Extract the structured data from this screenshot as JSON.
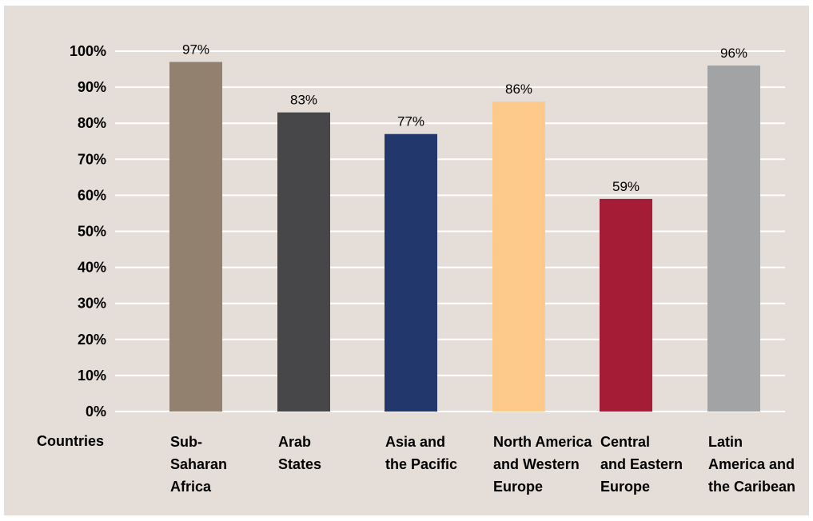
{
  "chart_data": {
    "type": "bar",
    "xlabel": "Countries",
    "ylabel": "",
    "ylim": [
      0,
      100
    ],
    "yticks": [
      "0%",
      "10%",
      "20%",
      "30%",
      "40%",
      "50%",
      "60%",
      "70%",
      "80%",
      "90%",
      "100%"
    ],
    "grid": true,
    "categories": [
      [
        "Sub-",
        "Saharan",
        "Africa"
      ],
      [
        "Arab",
        "States"
      ],
      [
        "Asia and",
        "the Pacific"
      ],
      [
        "North America",
        "and Western",
        "Europe"
      ],
      [
        "Central",
        "and Eastern",
        "Europe"
      ],
      [
        "Latin",
        "America and",
        "the Caribean"
      ]
    ],
    "values": [
      97,
      83,
      77,
      86,
      59,
      96
    ],
    "value_labels": [
      "97%",
      "83%",
      "77%",
      "86%",
      "59%",
      "96%"
    ],
    "bar_colors": [
      "#938170",
      "#474749",
      "#22386c",
      "#fdca8c",
      "#a41c35",
      "#a2a3a5"
    ],
    "background_color": "#e5ddd7",
    "gridline_color": "#ffffff"
  }
}
